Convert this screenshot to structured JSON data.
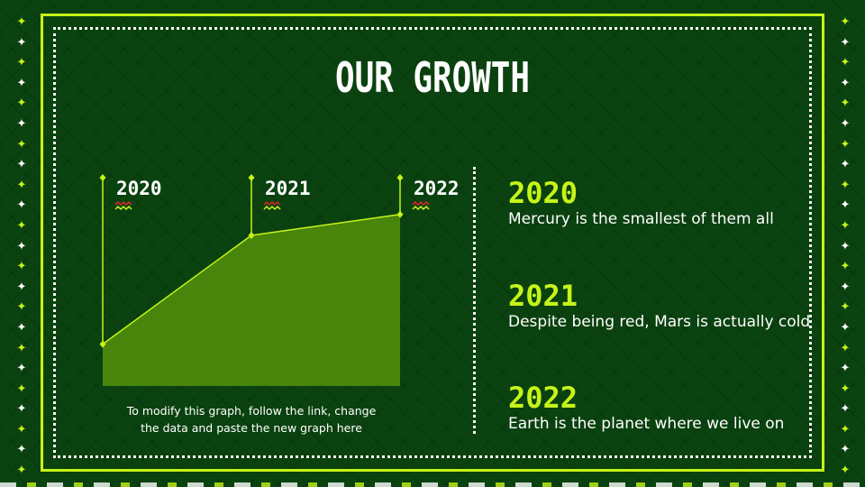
{
  "title": "OUR GROWTH",
  "colors": {
    "accent": "#c6f418",
    "background": "#0b4310",
    "text": "#ffffff",
    "wave_red": "#e3242b"
  },
  "decorations": {
    "star_icon": "four-point-star-icon"
  },
  "chart_data": {
    "type": "area",
    "x": [
      "2020",
      "2021",
      "2022"
    ],
    "values": [
      1,
      3.6,
      4.1
    ],
    "ylim": [
      0,
      5
    ],
    "title": "",
    "xlabel": "",
    "ylabel": "",
    "grid": false
  },
  "chart_note": {
    "line1": "To modify this graph, follow the link, change",
    "line2": "the data and paste the new graph here"
  },
  "entries": [
    {
      "year": "2020",
      "text": "Mercury is the smallest of them all"
    },
    {
      "year": "2021",
      "text": "Despite being red, Mars is actually cold"
    },
    {
      "year": "2022",
      "text": "Earth is the planet where we live on"
    }
  ]
}
